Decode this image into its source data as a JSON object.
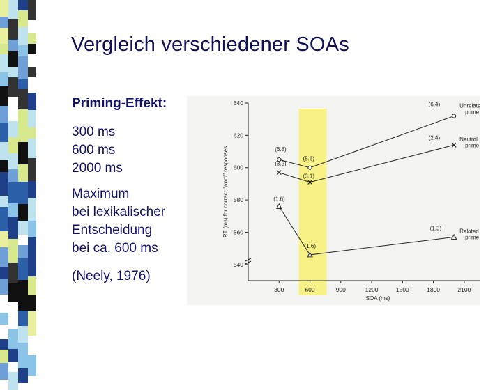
{
  "slide": {
    "title": "Vergleich verschiedener SOAs",
    "heading": "Priming-Effekt:",
    "soa_items": [
      "300 ms",
      "600 ms",
      "2000 ms"
    ],
    "note_lines": [
      "Maximum",
      "bei lexikalischer",
      "Entscheidung",
      "bei ca. 600 ms"
    ],
    "citation": "(Neely, 1976)",
    "highlight_color": "#f8f27a"
  },
  "chart_data": {
    "type": "line",
    "xlabel": "SOA (ms)",
    "ylabel": "RT (ms) for correct \"word\" responses",
    "xlim": [
      0,
      2250
    ],
    "ylim": [
      530,
      640
    ],
    "x_ticks": [
      300,
      600,
      900,
      1200,
      1500,
      1800,
      2100
    ],
    "y_ticks": [
      540,
      560,
      580,
      600,
      620,
      640
    ],
    "highlight_x": 600,
    "series": [
      {
        "name": "Unrelated prime",
        "marker": "circle",
        "x": [
          300,
          600,
          2000
        ],
        "y": [
          605,
          600,
          632
        ],
        "labels": [
          "(6.8)",
          "(5.6)",
          "(6.4)"
        ]
      },
      {
        "name": "Neutral prime",
        "marker": "x",
        "x": [
          300,
          600,
          2000
        ],
        "y": [
          597,
          591,
          614
        ],
        "labels": [
          "(3.2)",
          "(3.1)",
          "(2.4)"
        ]
      },
      {
        "name": "Related prime",
        "marker": "triangle",
        "x": [
          300,
          600,
          2000
        ],
        "y": [
          576,
          546,
          557
        ],
        "labels": [
          "(1.6)",
          "(1.6)",
          "(1.3)"
        ]
      }
    ],
    "legend_labels": [
      [
        "Unrelated",
        "prime"
      ],
      [
        "Neutral",
        "prime"
      ],
      [
        "Related",
        "prime"
      ]
    ]
  }
}
